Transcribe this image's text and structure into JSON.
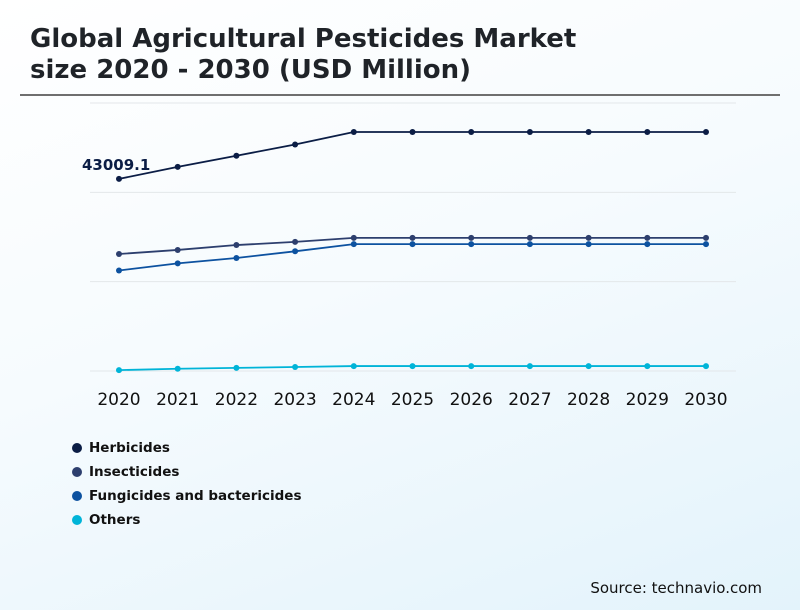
{
  "title_line1": "Global Agricultural Pesticides Market",
  "title_line2": "size 2020 - 2030 (USD Million)",
  "source": "Source: technavio.com",
  "chart_data": {
    "type": "line",
    "title": "Global Agricultural Pesticides Market size 2020 - 2030 (USD Million)",
    "xlabel": "",
    "ylabel": "",
    "x": [
      "2020",
      "2021",
      "2022",
      "2023",
      "2024",
      "2025",
      "2026",
      "2027",
      "2028",
      "2029",
      "2030"
    ],
    "ylim": [
      0,
      60000
    ],
    "grid": true,
    "legend": "bottom-left",
    "annotation": {
      "series": "Herbicides",
      "index": 0,
      "text": "43009.1"
    },
    "series": [
      {
        "name": "Herbicides",
        "color": "#0b1d45",
        "values": [
          43009.1,
          45700,
          48200,
          50700,
          53500,
          53500,
          53500,
          53500,
          53500,
          53500,
          53500
        ]
      },
      {
        "name": "Insecticides",
        "color": "#2d3f6e",
        "values": [
          26200,
          27100,
          28200,
          28900,
          29800,
          29800,
          29800,
          29800,
          29800,
          29800,
          29800
        ]
      },
      {
        "name": "Fungicides and bactericides",
        "color": "#0d52a0",
        "values": [
          22500,
          24100,
          25300,
          26800,
          28400,
          28400,
          28400,
          28400,
          28400,
          28400,
          28400
        ]
      },
      {
        "name": "Others",
        "color": "#00b4d8",
        "values": [
          200,
          500,
          700,
          900,
          1100,
          1100,
          1100,
          1100,
          1100,
          1100,
          1100
        ]
      }
    ]
  }
}
